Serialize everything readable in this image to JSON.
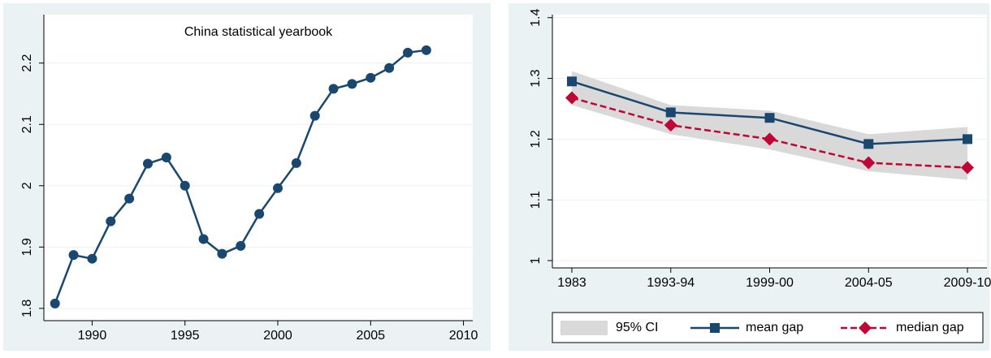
{
  "chart_data": [
    {
      "type": "line",
      "title": "China statistical yearbook",
      "x": [
        1988,
        1989,
        1990,
        1991,
        1992,
        1993,
        1994,
        1995,
        1996,
        1997,
        1998,
        1999,
        2000,
        2001,
        2002,
        2003,
        2004,
        2005,
        2006,
        2007,
        2008
      ],
      "series": [
        {
          "color": "#1a476f",
          "marker": "circle",
          "values": [
            1.808,
            1.887,
            1.881,
            1.942,
            1.979,
            2.036,
            2.046,
            2.0,
            1.913,
            1.889,
            1.902,
            1.954,
            1.996,
            2.037,
            2.114,
            2.158,
            2.166,
            2.176,
            2.192,
            2.217,
            2.221
          ]
        }
      ],
      "xlim": [
        1987.4,
        2010.5
      ],
      "xticks": [
        1990,
        1995,
        2000,
        2005,
        2010
      ],
      "ylim": [
        1.78,
        2.279
      ],
      "yticks": [
        1.8,
        1.9,
        2,
        2.1,
        2.2
      ],
      "grid": true
    },
    {
      "type": "line",
      "categories": [
        "1983",
        "1993-94",
        "1999-00",
        "2004-05",
        "2009-10"
      ],
      "band": {
        "name": "95% CI",
        "color": "#d9d9d9",
        "lower": [
          1.256,
          1.208,
          1.183,
          1.147,
          1.133
        ],
        "upper": [
          1.312,
          1.256,
          1.247,
          1.208,
          1.22
        ]
      },
      "series": [
        {
          "name": "mean gap",
          "color": "#1a476f",
          "marker": "square",
          "dash": false,
          "values": [
            1.295,
            1.244,
            1.235,
            1.192,
            1.2
          ]
        },
        {
          "name": "median gap",
          "color": "#c10534",
          "marker": "diamond",
          "dash": true,
          "values": [
            1.268,
            1.223,
            1.2,
            1.161,
            1.153
          ]
        }
      ],
      "ylim": [
        0.988,
        1.405
      ],
      "yticks": [
        1,
        1.1,
        1.2,
        1.3,
        1.4
      ],
      "grid": true,
      "legend": "bottom"
    }
  ]
}
